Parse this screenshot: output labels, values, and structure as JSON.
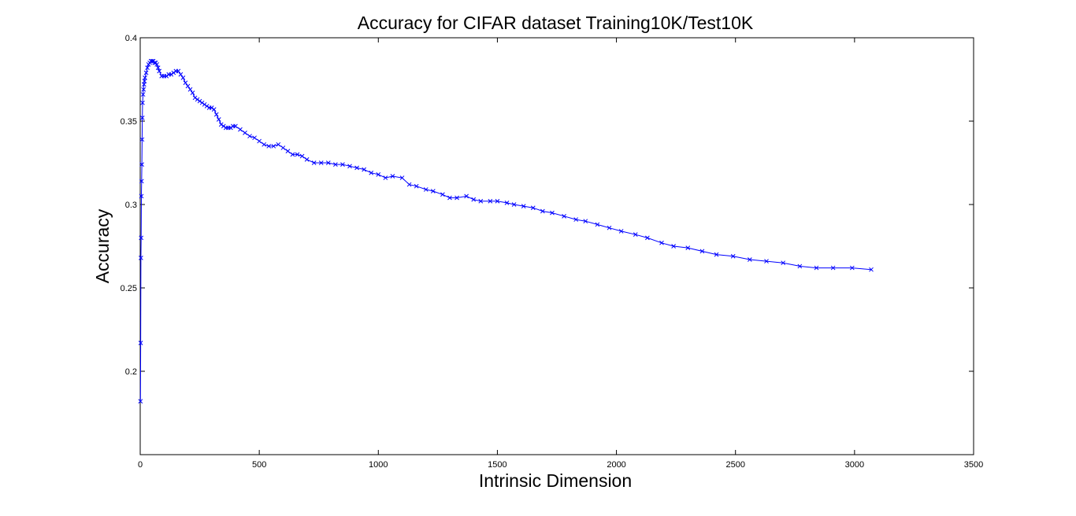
{
  "chart_data": {
    "type": "line",
    "title": "Accuracy for CIFAR dataset Training10K/Test10K",
    "xlabel": "Intrinsic Dimension",
    "ylabel": "Accuracy",
    "xlim": [
      0,
      3500
    ],
    "ylim": [
      0.15,
      0.4
    ],
    "xticks": [
      0,
      500,
      1000,
      1500,
      2000,
      2500,
      3000,
      3500
    ],
    "yticks": [
      0.2,
      0.25,
      0.3,
      0.35,
      0.4
    ],
    "ytick_labels": [
      "0.2",
      "0.25",
      "0.3",
      "0.35",
      "0.4"
    ],
    "grid": false,
    "legend": "none",
    "marker": "x",
    "line_color": "#0000ff",
    "series": [
      {
        "x": [
          1,
          2,
          3,
          4,
          5,
          6,
          7,
          8,
          9,
          10,
          12,
          14,
          16,
          18,
          20,
          25,
          30,
          35,
          40,
          45,
          50,
          55,
          60,
          65,
          70,
          75,
          80,
          90,
          100,
          110,
          120,
          130,
          140,
          150,
          160,
          170,
          180,
          190,
          200,
          210,
          220,
          230,
          240,
          250,
          260,
          270,
          280,
          290,
          300,
          310,
          320,
          330,
          340,
          350,
          360,
          370,
          380,
          390,
          400,
          420,
          440,
          460,
          480,
          500,
          520,
          540,
          560,
          580,
          600,
          620,
          640,
          660,
          680,
          700,
          730,
          760,
          790,
          820,
          850,
          880,
          910,
          940,
          970,
          1000,
          1030,
          1060,
          1100,
          1130,
          1160,
          1200,
          1230,
          1270,
          1300,
          1330,
          1370,
          1400,
          1430,
          1470,
          1500,
          1540,
          1570,
          1610,
          1650,
          1690,
          1730,
          1780,
          1830,
          1870,
          1920,
          1970,
          2020,
          2080,
          2130,
          2190,
          2240,
          2300,
          2360,
          2420,
          2490,
          2560,
          2630,
          2700,
          2770,
          2840,
          2910,
          2990,
          3070
        ],
        "y": [
          0.182,
          0.217,
          0.268,
          0.28,
          0.305,
          0.314,
          0.324,
          0.339,
          0.352,
          0.361,
          0.366,
          0.369,
          0.372,
          0.374,
          0.376,
          0.379,
          0.382,
          0.384,
          0.385,
          0.386,
          0.386,
          0.386,
          0.385,
          0.385,
          0.384,
          0.382,
          0.38,
          0.377,
          0.377,
          0.377,
          0.378,
          0.378,
          0.379,
          0.38,
          0.38,
          0.378,
          0.376,
          0.373,
          0.371,
          0.369,
          0.367,
          0.364,
          0.363,
          0.362,
          0.361,
          0.36,
          0.359,
          0.358,
          0.358,
          0.357,
          0.354,
          0.351,
          0.348,
          0.347,
          0.346,
          0.346,
          0.346,
          0.347,
          0.347,
          0.345,
          0.343,
          0.341,
          0.34,
          0.338,
          0.336,
          0.335,
          0.335,
          0.336,
          0.334,
          0.332,
          0.33,
          0.33,
          0.329,
          0.327,
          0.325,
          0.325,
          0.325,
          0.324,
          0.324,
          0.323,
          0.322,
          0.321,
          0.319,
          0.318,
          0.316,
          0.317,
          0.316,
          0.312,
          0.311,
          0.309,
          0.308,
          0.306,
          0.304,
          0.304,
          0.305,
          0.303,
          0.302,
          0.302,
          0.302,
          0.301,
          0.3,
          0.299,
          0.298,
          0.296,
          0.295,
          0.293,
          0.291,
          0.29,
          0.288,
          0.286,
          0.284,
          0.282,
          0.28,
          0.277,
          0.275,
          0.274,
          0.272,
          0.27,
          0.269,
          0.267,
          0.266,
          0.265,
          0.263,
          0.262,
          0.262,
          0.262,
          0.261
        ]
      }
    ]
  }
}
